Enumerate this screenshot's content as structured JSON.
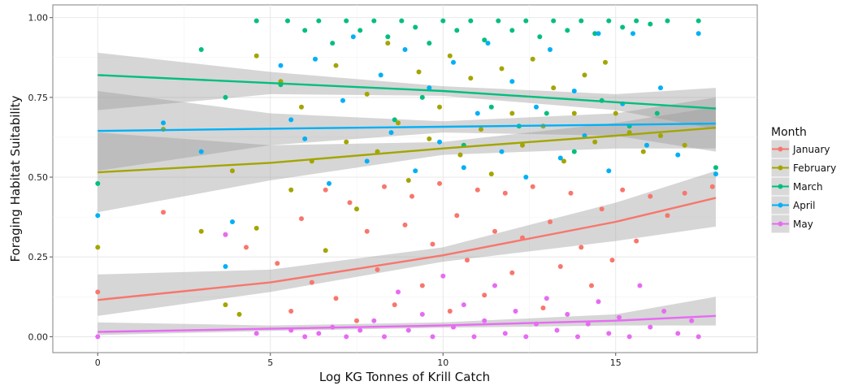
{
  "chart_data": {
    "type": "scatter",
    "title": "",
    "xlabel": "Log KG Tonnes of Krill Catch",
    "ylabel": "Foraging Habitat Suitability",
    "xlim": [
      -1.3,
      19.1
    ],
    "ylim": [
      -0.05,
      1.04
    ],
    "x_ticks": [
      0,
      5,
      10,
      15
    ],
    "y_ticks": [
      0,
      0.25,
      0.5,
      0.75,
      1.0
    ],
    "x_tick_labels": [
      "0",
      "5",
      "10",
      "15"
    ],
    "y_tick_labels": [
      "0.00",
      "0.25",
      "0.50",
      "0.75",
      "1.00"
    ],
    "grid": true,
    "legend": {
      "title": "Month",
      "position": "right"
    },
    "series": [
      {
        "name": "January",
        "color": "#F8766D",
        "fit": {
          "x": [
            0,
            5,
            10,
            15,
            17.9
          ],
          "y": [
            0.115,
            0.17,
            0.255,
            0.36,
            0.435
          ],
          "lower": [
            0.065,
            0.14,
            0.235,
            0.3,
            0.345
          ],
          "upper": [
            0.195,
            0.21,
            0.28,
            0.42,
            0.52
          ]
        },
        "points": [
          [
            0,
            0.14
          ],
          [
            1.9,
            0.39
          ],
          [
            3.7,
            0.32
          ],
          [
            4.3,
            0.28
          ],
          [
            5.2,
            0.23
          ],
          [
            5.6,
            0.08
          ],
          [
            5.9,
            0.37
          ],
          [
            6.2,
            0.17
          ],
          [
            6.6,
            0.46
          ],
          [
            6.9,
            0.12
          ],
          [
            7.3,
            0.42
          ],
          [
            7.5,
            0.05
          ],
          [
            7.8,
            0.33
          ],
          [
            8.1,
            0.21
          ],
          [
            8.3,
            0.47
          ],
          [
            8.6,
            0.1
          ],
          [
            8.9,
            0.35
          ],
          [
            9.1,
            0.44
          ],
          [
            9.4,
            0.16
          ],
          [
            9.7,
            0.29
          ],
          [
            9.9,
            0.48
          ],
          [
            10.2,
            0.08
          ],
          [
            10.4,
            0.38
          ],
          [
            10.7,
            0.24
          ],
          [
            11.0,
            0.46
          ],
          [
            11.2,
            0.13
          ],
          [
            11.5,
            0.33
          ],
          [
            11.8,
            0.45
          ],
          [
            12.0,
            0.2
          ],
          [
            12.3,
            0.31
          ],
          [
            12.6,
            0.47
          ],
          [
            12.9,
            0.09
          ],
          [
            13.1,
            0.36
          ],
          [
            13.4,
            0.22
          ],
          [
            13.7,
            0.45
          ],
          [
            14.0,
            0.28
          ],
          [
            14.3,
            0.16
          ],
          [
            14.6,
            0.4
          ],
          [
            14.9,
            0.24
          ],
          [
            15.2,
            0.46
          ],
          [
            15.6,
            0.3
          ],
          [
            16.0,
            0.44
          ],
          [
            16.5,
            0.38
          ],
          [
            17.0,
            0.45
          ],
          [
            17.8,
            0.47
          ]
        ]
      },
      {
        "name": "February",
        "color": "#A3A500",
        "fit": {
          "x": [
            0,
            5,
            10,
            15,
            17.9
          ],
          "y": [
            0.515,
            0.545,
            0.59,
            0.63,
            0.655
          ],
          "lower": [
            0.39,
            0.49,
            0.57,
            0.59,
            0.59
          ],
          "upper": [
            0.64,
            0.6,
            0.61,
            0.67,
            0.72
          ]
        },
        "points": [
          [
            0,
            0.28
          ],
          [
            1.9,
            0.65
          ],
          [
            3.0,
            0.33
          ],
          [
            3.7,
            0.1
          ],
          [
            3.9,
            0.52
          ],
          [
            4.1,
            0.07
          ],
          [
            4.6,
            0.88
          ],
          [
            4.6,
            0.34
          ],
          [
            5.3,
            0.8
          ],
          [
            5.6,
            0.46
          ],
          [
            5.9,
            0.72
          ],
          [
            6.2,
            0.55
          ],
          [
            6.6,
            0.27
          ],
          [
            6.9,
            0.85
          ],
          [
            7.2,
            0.61
          ],
          [
            7.5,
            0.4
          ],
          [
            7.8,
            0.76
          ],
          [
            8.1,
            0.58
          ],
          [
            8.4,
            0.92
          ],
          [
            8.7,
            0.67
          ],
          [
            9.0,
            0.49
          ],
          [
            9.3,
            0.83
          ],
          [
            9.6,
            0.62
          ],
          [
            9.9,
            0.72
          ],
          [
            10.2,
            0.88
          ],
          [
            10.5,
            0.57
          ],
          [
            10.8,
            0.81
          ],
          [
            11.1,
            0.65
          ],
          [
            11.4,
            0.51
          ],
          [
            11.7,
            0.84
          ],
          [
            12.0,
            0.7
          ],
          [
            12.3,
            0.6
          ],
          [
            12.6,
            0.87
          ],
          [
            12.9,
            0.66
          ],
          [
            13.2,
            0.78
          ],
          [
            13.5,
            0.55
          ],
          [
            13.8,
            0.7
          ],
          [
            14.1,
            0.82
          ],
          [
            14.4,
            0.61
          ],
          [
            14.7,
            0.86
          ],
          [
            15.0,
            0.7
          ],
          [
            15.4,
            0.64
          ],
          [
            15.8,
            0.58
          ],
          [
            16.3,
            0.63
          ],
          [
            17.0,
            0.6
          ]
        ]
      },
      {
        "name": "March",
        "color": "#00BF7D",
        "fit": {
          "x": [
            0,
            5,
            10,
            15,
            17.9
          ],
          "y": [
            0.82,
            0.795,
            0.77,
            0.735,
            0.715
          ],
          "lower": [
            0.71,
            0.76,
            0.755,
            0.71,
            0.65
          ],
          "upper": [
            0.89,
            0.83,
            0.785,
            0.76,
            0.78
          ]
        },
        "points": [
          [
            0,
            0.48
          ],
          [
            3.0,
            0.9
          ],
          [
            3.7,
            0.75
          ],
          [
            4.6,
            0.99
          ],
          [
            5.3,
            0.79
          ],
          [
            5.5,
            0.99
          ],
          [
            6.0,
            0.96
          ],
          [
            6.4,
            0.99
          ],
          [
            6.8,
            0.92
          ],
          [
            7.2,
            0.99
          ],
          [
            7.6,
            0.96
          ],
          [
            8.0,
            0.99
          ],
          [
            8.4,
            0.94
          ],
          [
            8.8,
            0.99
          ],
          [
            9.2,
            0.97
          ],
          [
            9.6,
            0.92
          ],
          [
            10.0,
            0.99
          ],
          [
            10.4,
            0.96
          ],
          [
            10.8,
            0.99
          ],
          [
            11.2,
            0.93
          ],
          [
            11.6,
            0.99
          ],
          [
            12.0,
            0.96
          ],
          [
            12.4,
            0.99
          ],
          [
            12.8,
            0.94
          ],
          [
            13.2,
            0.99
          ],
          [
            13.6,
            0.96
          ],
          [
            14.0,
            0.99
          ],
          [
            14.4,
            0.95
          ],
          [
            14.8,
            0.99
          ],
          [
            15.2,
            0.97
          ],
          [
            15.6,
            0.99
          ],
          [
            16.0,
            0.98
          ],
          [
            16.5,
            0.99
          ],
          [
            17.4,
            0.99
          ],
          [
            8.6,
            0.68
          ],
          [
            9.4,
            0.75
          ],
          [
            10.6,
            0.6
          ],
          [
            11.4,
            0.72
          ],
          [
            12.2,
            0.66
          ],
          [
            13.0,
            0.7
          ],
          [
            13.8,
            0.58
          ],
          [
            14.6,
            0.74
          ],
          [
            15.4,
            0.66
          ],
          [
            16.2,
            0.7
          ],
          [
            17.9,
            0.53
          ]
        ]
      },
      {
        "name": "April",
        "color": "#00B0F6",
        "fit": {
          "x": [
            0,
            5,
            10,
            15,
            17.9
          ],
          "y": [
            0.645,
            0.652,
            0.658,
            0.664,
            0.668
          ],
          "lower": [
            0.52,
            0.6,
            0.64,
            0.63,
            0.58
          ],
          "upper": [
            0.77,
            0.7,
            0.675,
            0.7,
            0.75
          ]
        },
        "points": [
          [
            0,
            0.38
          ],
          [
            1.9,
            0.67
          ],
          [
            3.0,
            0.58
          ],
          [
            3.7,
            0.22
          ],
          [
            3.9,
            0.36
          ],
          [
            5.3,
            0.85
          ],
          [
            5.6,
            0.68
          ],
          [
            6.0,
            0.62
          ],
          [
            6.3,
            0.87
          ],
          [
            6.7,
            0.48
          ],
          [
            7.1,
            0.74
          ],
          [
            7.4,
            0.94
          ],
          [
            7.8,
            0.55
          ],
          [
            8.2,
            0.82
          ],
          [
            8.5,
            0.64
          ],
          [
            8.9,
            0.9
          ],
          [
            9.2,
            0.52
          ],
          [
            9.6,
            0.78
          ],
          [
            9.9,
            0.61
          ],
          [
            10.3,
            0.86
          ],
          [
            10.6,
            0.53
          ],
          [
            11.0,
            0.7
          ],
          [
            11.3,
            0.92
          ],
          [
            11.7,
            0.58
          ],
          [
            12.0,
            0.8
          ],
          [
            12.4,
            0.5
          ],
          [
            12.7,
            0.72
          ],
          [
            13.1,
            0.9
          ],
          [
            13.4,
            0.56
          ],
          [
            13.8,
            0.77
          ],
          [
            14.1,
            0.63
          ],
          [
            14.5,
            0.95
          ],
          [
            14.8,
            0.52
          ],
          [
            15.2,
            0.73
          ],
          [
            15.5,
            0.95
          ],
          [
            15.9,
            0.6
          ],
          [
            16.3,
            0.78
          ],
          [
            16.8,
            0.57
          ],
          [
            17.4,
            0.95
          ],
          [
            17.9,
            0.51
          ]
        ]
      },
      {
        "name": "May",
        "color": "#E76BF3",
        "fit": {
          "x": [
            0,
            5,
            10,
            15,
            17.9
          ],
          "y": [
            0.015,
            0.025,
            0.035,
            0.05,
            0.065
          ],
          "lower": [
            0.005,
            0.018,
            0.028,
            0.035,
            0.035
          ],
          "upper": [
            0.045,
            0.035,
            0.045,
            0.07,
            0.125
          ]
        },
        "points": [
          [
            0,
            0.0
          ],
          [
            3.7,
            0.32
          ],
          [
            4.6,
            0.01
          ],
          [
            5.6,
            0.02
          ],
          [
            6.0,
            0.0
          ],
          [
            6.4,
            0.01
          ],
          [
            6.8,
            0.03
          ],
          [
            7.2,
            0.0
          ],
          [
            7.6,
            0.02
          ],
          [
            8.0,
            0.05
          ],
          [
            8.3,
            0.0
          ],
          [
            8.7,
            0.14
          ],
          [
            9.0,
            0.02
          ],
          [
            9.4,
            0.07
          ],
          [
            9.7,
            0.0
          ],
          [
            10.0,
            0.19
          ],
          [
            10.3,
            0.03
          ],
          [
            10.6,
            0.1
          ],
          [
            10.9,
            0.0
          ],
          [
            11.2,
            0.05
          ],
          [
            11.5,
            0.16
          ],
          [
            11.8,
            0.01
          ],
          [
            12.1,
            0.08
          ],
          [
            12.4,
            0.0
          ],
          [
            12.7,
            0.04
          ],
          [
            13.0,
            0.12
          ],
          [
            13.3,
            0.02
          ],
          [
            13.6,
            0.07
          ],
          [
            13.9,
            0.0
          ],
          [
            14.2,
            0.04
          ],
          [
            14.5,
            0.11
          ],
          [
            14.8,
            0.01
          ],
          [
            15.1,
            0.06
          ],
          [
            15.4,
            0.0
          ],
          [
            15.7,
            0.16
          ],
          [
            16.0,
            0.03
          ],
          [
            16.4,
            0.08
          ],
          [
            16.8,
            0.01
          ],
          [
            17.2,
            0.05
          ],
          [
            17.4,
            0.0
          ]
        ]
      }
    ]
  }
}
